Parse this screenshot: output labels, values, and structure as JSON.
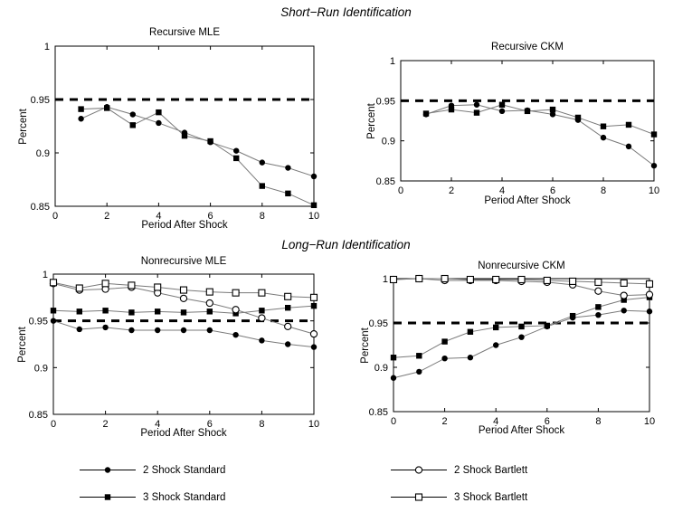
{
  "figure": {
    "supertitle_top": "Short−Run Identification",
    "supertitle_bottom": "Long−Run Identification"
  },
  "colors": {
    "background": "#ffffff",
    "axis": "#000000",
    "series_line": "#7a7a7a",
    "marker": "#000000",
    "reference_line": "#000000"
  },
  "chart_data": [
    {
      "type": "line",
      "title": "Recursive MLE",
      "xlabel": "Period After Shock",
      "ylabel": "Percent",
      "xlim": [
        0,
        10
      ],
      "ylim": [
        0.85,
        1
      ],
      "xticks": [
        0,
        2,
        4,
        6,
        8,
        10
      ],
      "xtick_labels": [
        "0",
        "2",
        "4",
        "6",
        "8",
        "10"
      ],
      "yticks": [
        0.85,
        0.9,
        0.95,
        1
      ],
      "ytick_labels": [
        "0.85",
        "0.9",
        "0.95",
        "1"
      ],
      "reference_line_y": 0.95,
      "x": [
        1,
        2,
        3,
        4,
        5,
        6,
        7,
        8,
        9,
        10
      ],
      "series": [
        {
          "name": "2 Shock Standard",
          "marker": "filled-circle",
          "values": [
            0.932,
            0.943,
            0.936,
            0.928,
            0.919,
            0.91,
            0.902,
            0.891,
            0.886,
            0.878
          ]
        },
        {
          "name": "3 Shock Standard",
          "marker": "filled-square",
          "values": [
            0.941,
            0.942,
            0.926,
            0.938,
            0.916,
            0.911,
            0.895,
            0.869,
            0.862,
            0.851
          ]
        }
      ]
    },
    {
      "type": "line",
      "title": "Recursive CKM",
      "xlabel": "Period After Shock",
      "ylabel": "Percent",
      "xlim": [
        0,
        10
      ],
      "ylim": [
        0.85,
        1
      ],
      "xticks": [
        0,
        2,
        4,
        6,
        8,
        10
      ],
      "xtick_labels": [
        "0",
        "2",
        "4",
        "6",
        "8",
        "10"
      ],
      "yticks": [
        0.85,
        0.9,
        0.95,
        1
      ],
      "ytick_labels": [
        "0.85",
        "0.9",
        "0.95",
        "1"
      ],
      "reference_line_y": 0.95,
      "x": [
        1,
        2,
        3,
        4,
        5,
        6,
        7,
        8,
        9,
        10
      ],
      "series": [
        {
          "name": "2 Shock Standard",
          "marker": "filled-circle",
          "values": [
            0.933,
            0.944,
            0.945,
            0.937,
            0.938,
            0.933,
            0.926,
            0.904,
            0.893,
            0.869
          ]
        },
        {
          "name": "3 Shock Standard",
          "marker": "filled-square",
          "values": [
            0.934,
            0.939,
            0.935,
            0.945,
            0.937,
            0.939,
            0.929,
            0.918,
            0.92,
            0.908
          ]
        }
      ]
    },
    {
      "type": "line",
      "title": "Nonrecursive MLE",
      "xlabel": "Period After Shock",
      "ylabel": "Percent",
      "xlim": [
        0,
        10
      ],
      "ylim": [
        0.85,
        1
      ],
      "xticks": [
        0,
        2,
        4,
        6,
        8,
        10
      ],
      "xtick_labels": [
        "0",
        "2",
        "4",
        "6",
        "8",
        "10"
      ],
      "yticks": [
        0.85,
        0.9,
        0.95,
        1
      ],
      "ytick_labels": [
        "0.85",
        "0.9",
        "0.95",
        "1"
      ],
      "reference_line_y": 0.95,
      "x": [
        0,
        1,
        2,
        3,
        4,
        5,
        6,
        7,
        8,
        9,
        10
      ],
      "series": [
        {
          "name": "2 Shock Standard",
          "marker": "filled-circle",
          "values": [
            0.95,
            0.941,
            0.943,
            0.94,
            0.94,
            0.94,
            0.94,
            0.935,
            0.929,
            0.925,
            0.922
          ]
        },
        {
          "name": "3 Shock Standard",
          "marker": "filled-square",
          "values": [
            0.961,
            0.96,
            0.961,
            0.959,
            0.96,
            0.959,
            0.96,
            0.958,
            0.961,
            0.964,
            0.966
          ]
        },
        {
          "name": "2 Shock Bartlett",
          "marker": "open-circle",
          "values": [
            0.99,
            0.983,
            0.984,
            0.986,
            0.98,
            0.974,
            0.969,
            0.962,
            0.953,
            0.944,
            0.936
          ]
        },
        {
          "name": "3 Shock Bartlett",
          "marker": "open-square",
          "values": [
            0.991,
            0.985,
            0.99,
            0.988,
            0.986,
            0.983,
            0.981,
            0.98,
            0.98,
            0.976,
            0.975
          ]
        }
      ]
    },
    {
      "type": "line",
      "title": "Nonrecursive CKM",
      "xlabel": "Period After Shock",
      "ylabel": "Percent",
      "xlim": [
        0,
        10
      ],
      "ylim": [
        0.85,
        1
      ],
      "xticks": [
        0,
        2,
        4,
        6,
        8,
        10
      ],
      "xtick_labels": [
        "0",
        "2",
        "4",
        "6",
        "8",
        "10"
      ],
      "yticks": [
        0.85,
        0.9,
        0.95,
        1
      ],
      "ytick_labels": [
        "0.85",
        "0.9",
        "0.95",
        "1"
      ],
      "reference_line_y": 0.95,
      "x": [
        0,
        1,
        2,
        3,
        4,
        5,
        6,
        7,
        8,
        9,
        10
      ],
      "series": [
        {
          "name": "2 Shock Standard",
          "marker": "filled-circle",
          "values": [
            0.888,
            0.895,
            0.91,
            0.911,
            0.925,
            0.934,
            0.946,
            0.956,
            0.959,
            0.964,
            0.963
          ]
        },
        {
          "name": "3 Shock Standard",
          "marker": "filled-square",
          "values": [
            0.911,
            0.913,
            0.929,
            0.94,
            0.945,
            0.946,
            0.947,
            0.958,
            0.968,
            0.976,
            0.979
          ]
        },
        {
          "name": "2 Shock Bartlett",
          "marker": "open-circle",
          "values": [
            0.999,
            1.0,
            0.998,
            0.998,
            0.998,
            0.997,
            0.996,
            0.993,
            0.986,
            0.981,
            0.982
          ]
        },
        {
          "name": "3 Shock Bartlett",
          "marker": "open-square",
          "values": [
            0.999,
            1.0,
            1.0,
            0.999,
            0.999,
            0.999,
            0.998,
            0.997,
            0.996,
            0.995,
            0.994
          ]
        }
      ]
    }
  ],
  "legend": {
    "items": [
      {
        "label": "2 Shock Standard",
        "marker": "filled-circle"
      },
      {
        "label": "3 Shock Standard",
        "marker": "filled-square"
      },
      {
        "label": "2 Shock Bartlett",
        "marker": "open-circle"
      },
      {
        "label": "3 Shock Bartlett",
        "marker": "open-square"
      }
    ]
  }
}
